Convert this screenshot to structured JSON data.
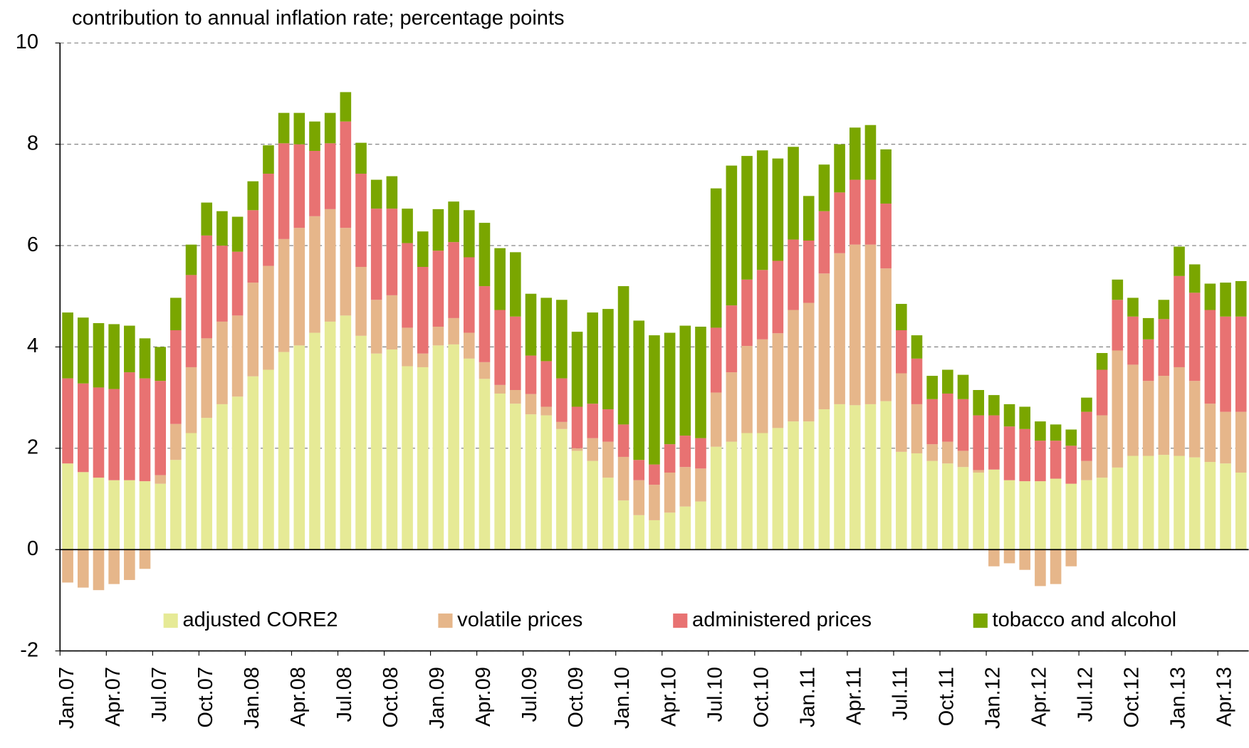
{
  "chart_data": {
    "type": "stacked_bar",
    "title": "contribution to annual inflation rate; percentage points",
    "categories": [
      "Jan.07",
      null,
      null,
      "Apr.07",
      null,
      null,
      "Jul.07",
      null,
      null,
      "Oct.07",
      null,
      null,
      "Jan.08",
      null,
      null,
      "Apr.08",
      null,
      null,
      "Jul.08",
      null,
      null,
      "Oct.08",
      null,
      null,
      "Jan.09",
      null,
      null,
      "Apr.09",
      null,
      null,
      "Jul.09",
      null,
      null,
      "Oct.09",
      null,
      null,
      "Jan.10",
      null,
      null,
      "Apr.10",
      null,
      null,
      "Jul.10",
      null,
      null,
      "Oct.10",
      null,
      null,
      "Jan.11",
      null,
      null,
      "Apr.11",
      null,
      null,
      "Jul.11",
      null,
      null,
      "Oct.11",
      null,
      null,
      "Jan.12",
      null,
      null,
      "Apr.12",
      null,
      null,
      "Jul.12",
      null,
      null,
      "Oct.12",
      null,
      null,
      "Jan.13",
      null,
      null,
      "Apr.13",
      null
    ],
    "series": [
      {
        "name": "adjusted CORE2",
        "color": "#e6ea96",
        "values": [
          1.7,
          1.53,
          1.42,
          1.37,
          1.37,
          1.35,
          1.3,
          1.77,
          2.3,
          2.6,
          2.87,
          3.02,
          3.42,
          3.55,
          3.9,
          4.03,
          4.28,
          4.5,
          4.62,
          4.22,
          3.87,
          3.95,
          3.62,
          3.6,
          4.03,
          4.05,
          3.77,
          3.37,
          3.08,
          2.88,
          2.67,
          2.65,
          2.38,
          1.95,
          1.75,
          1.42,
          0.97,
          0.68,
          0.58,
          0.73,
          0.85,
          0.95,
          2.03,
          2.13,
          2.3,
          2.3,
          2.4,
          2.53,
          2.53,
          2.77,
          2.87,
          2.85,
          2.87,
          2.93,
          1.93,
          1.9,
          1.75,
          1.7,
          1.63,
          1.52,
          1.58,
          1.37,
          1.35,
          1.35,
          1.4,
          1.3,
          1.37,
          1.42,
          1.62,
          1.85,
          1.85,
          1.87,
          1.85,
          1.82,
          1.73,
          1.7,
          1.52
        ]
      },
      {
        "name": "volatile prices",
        "color": "#e6b68a",
        "values": [
          -0.65,
          -0.75,
          -0.8,
          -0.68,
          -0.6,
          -0.38,
          0.17,
          0.71,
          1.3,
          1.57,
          1.63,
          1.6,
          1.85,
          2.05,
          2.23,
          2.32,
          2.3,
          2.22,
          1.73,
          1.36,
          1.06,
          1.07,
          0.76,
          0.27,
          0.37,
          0.52,
          0.51,
          0.33,
          0.17,
          0.27,
          0.4,
          0.17,
          0.14,
          0.05,
          0.45,
          0.71,
          0.86,
          0.69,
          0.7,
          0.79,
          0.78,
          0.65,
          1.07,
          1.37,
          1.72,
          1.85,
          1.87,
          2.2,
          2.34,
          2.68,
          2.98,
          3.17,
          3.15,
          2.62,
          1.55,
          0.97,
          0.33,
          0.43,
          0.32,
          0.05,
          -0.33,
          -0.27,
          -0.4,
          -0.72,
          -0.68,
          -0.33,
          0.38,
          1.23,
          2.31,
          1.8,
          1.48,
          1.56,
          1.75,
          1.51,
          1.15,
          1.02,
          1.2
        ]
      },
      {
        "name": "administered prices",
        "color": "#e87272",
        "values": [
          1.68,
          1.75,
          1.78,
          1.8,
          2.13,
          2.03,
          1.86,
          1.85,
          1.82,
          2.03,
          1.5,
          1.26,
          1.43,
          1.82,
          1.89,
          1.65,
          1.29,
          1.3,
          2.1,
          1.84,
          1.8,
          1.71,
          1.67,
          1.71,
          1.5,
          1.5,
          1.49,
          1.5,
          1.48,
          1.45,
          0.76,
          0.9,
          0.86,
          0.82,
          0.68,
          0.64,
          0.64,
          0.4,
          0.4,
          0.56,
          0.62,
          0.6,
          1.28,
          1.32,
          1.31,
          1.37,
          1.43,
          1.39,
          1.23,
          1.23,
          1.2,
          1.28,
          1.28,
          1.28,
          0.85,
          0.9,
          0.89,
          0.95,
          1.02,
          1.08,
          1.07,
          1.06,
          1.03,
          0.8,
          0.75,
          0.75,
          0.97,
          0.9,
          1.0,
          0.95,
          0.82,
          1.12,
          1.8,
          1.74,
          1.85,
          1.88,
          1.88
        ]
      },
      {
        "name": "tobacco and alcohol",
        "color": "#7aa600",
        "values": [
          1.3,
          1.3,
          1.27,
          1.28,
          0.92,
          0.79,
          0.67,
          0.64,
          0.6,
          0.65,
          0.68,
          0.69,
          0.57,
          0.56,
          0.6,
          0.62,
          0.58,
          0.6,
          0.58,
          0.61,
          0.57,
          0.64,
          0.68,
          0.7,
          0.82,
          0.8,
          0.93,
          1.25,
          1.22,
          1.27,
          1.22,
          1.25,
          1.55,
          1.48,
          1.8,
          1.98,
          2.73,
          2.75,
          2.55,
          2.2,
          2.17,
          2.2,
          2.75,
          2.76,
          2.44,
          2.36,
          2.02,
          1.83,
          0.88,
          0.92,
          0.95,
          1.03,
          1.08,
          1.07,
          0.52,
          0.46,
          0.46,
          0.47,
          0.48,
          0.5,
          0.4,
          0.44,
          0.44,
          0.38,
          0.32,
          0.32,
          0.28,
          0.33,
          0.4,
          0.37,
          0.42,
          0.38,
          0.58,
          0.56,
          0.52,
          0.67,
          0.7
        ]
      }
    ],
    "ylim": [
      -2,
      10
    ],
    "yticks": [
      -2,
      0,
      2,
      4,
      6,
      8,
      10
    ],
    "grid": true,
    "legend": "bottom"
  }
}
